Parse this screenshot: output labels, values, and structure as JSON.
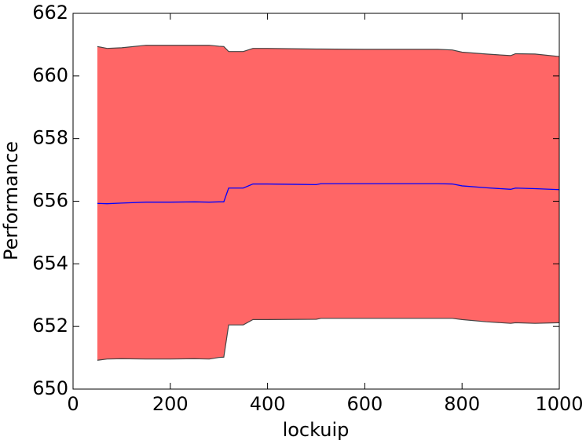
{
  "chart_data": {
    "type": "line",
    "xlabel": "lockuip",
    "ylabel": "Performance",
    "x": [
      50,
      70,
      100,
      150,
      200,
      250,
      280,
      300,
      310,
      320,
      350,
      370,
      400,
      500,
      510,
      600,
      750,
      780,
      800,
      850,
      900,
      910,
      950,
      1000
    ],
    "series": [
      {
        "color": "#0000ff",
        "values": [
          655.93,
          655.92,
          655.94,
          655.97,
          655.97,
          655.98,
          655.97,
          655.98,
          655.98,
          656.42,
          656.42,
          656.55,
          656.55,
          656.53,
          656.56,
          656.56,
          656.56,
          656.55,
          656.49,
          656.43,
          656.38,
          656.42,
          656.4,
          656.37
        ]
      }
    ],
    "band": {
      "color": "#ff6666",
      "edge_color": "#444444",
      "upper": [
        660.94,
        660.88,
        660.9,
        660.98,
        660.98,
        660.98,
        660.98,
        660.95,
        660.94,
        660.78,
        660.78,
        660.88,
        660.88,
        660.86,
        660.86,
        660.85,
        660.85,
        660.83,
        660.76,
        660.7,
        660.65,
        660.71,
        660.7,
        660.62
      ],
      "lower": [
        650.92,
        650.96,
        650.97,
        650.96,
        650.96,
        650.97,
        650.96,
        651.01,
        651.02,
        652.05,
        652.05,
        652.22,
        652.22,
        652.23,
        652.26,
        652.26,
        652.26,
        652.26,
        652.22,
        652.15,
        652.1,
        652.12,
        652.1,
        652.12
      ]
    },
    "xlim": [
      0,
      1000
    ],
    "xticks": [
      0,
      200,
      400,
      600,
      800,
      1000
    ],
    "ylim": [
      650,
      662
    ],
    "yticks": [
      650,
      652,
      654,
      656,
      658,
      660,
      662
    ],
    "grid": false
  }
}
